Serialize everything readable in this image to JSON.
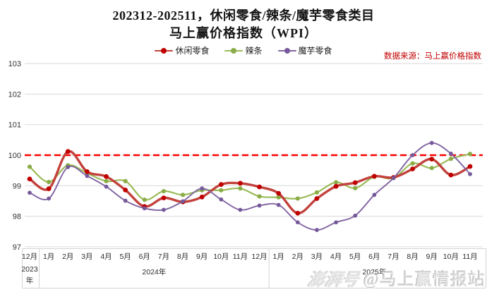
{
  "title": {
    "line1": "202312-202511，休闲零食/辣条/魔芋零食类目",
    "line2": "马上赢价格指数（WPI）"
  },
  "source_note": "数据来源：马上赢价格指数",
  "watermark": {
    "logo": "澎湃号",
    "handle": "@马上赢情报站"
  },
  "legend": [
    {
      "label": "休闲零食",
      "line_color": "#c2413c",
      "marker_color": "#c00000"
    },
    {
      "label": "辣条",
      "line_color": "#9bbb59",
      "marker_color": "#8aac47"
    },
    {
      "label": "魔芋零食",
      "line_color": "#8064a2",
      "marker_color": "#75599b"
    }
  ],
  "chart_data": {
    "type": "line",
    "title": "202312-202511，休闲零食/辣条/魔芋零食类目 马上赢价格指数（WPI）",
    "grid": true,
    "legend_position": "top",
    "ylim": [
      97,
      103
    ],
    "y_ticks": [
      103,
      102,
      101,
      100,
      99,
      98,
      97
    ],
    "reference_line": {
      "value": 100,
      "style": "dashed",
      "color": "#ff0000"
    },
    "categories": [
      "2023-12",
      "2024-01",
      "2024-02",
      "2024-03",
      "2024-04",
      "2024-05",
      "2024-06",
      "2024-07",
      "2024-08",
      "2024-09",
      "2024-10",
      "2024-11",
      "2024-12",
      "2025-01",
      "2025-02",
      "2025-03",
      "2025-04",
      "2025-05",
      "2025-06",
      "2025-07",
      "2025-08",
      "2025-09",
      "2025-10",
      "2025-11"
    ],
    "month_labels": [
      "12月",
      "1月",
      "2月",
      "3月",
      "4月",
      "5月",
      "6月",
      "7月",
      "8月",
      "9月",
      "10月",
      "11月",
      "12月",
      "1月",
      "2月",
      "3月",
      "4月",
      "5月",
      "6月",
      "7月",
      "8月",
      "9月",
      "10月",
      "11月"
    ],
    "year_groups": [
      {
        "label": "2023年",
        "start": 0,
        "end": 0
      },
      {
        "label": "2024年",
        "start": 1,
        "end": 12
      },
      {
        "label": "2025年",
        "start": 13,
        "end": 23
      }
    ],
    "series": [
      {
        "name": "休闲零食",
        "color": "#c2413c",
        "marker_color": "#c00000",
        "width": 3.4,
        "marker_r": 3.4,
        "values": [
          99.22,
          98.9,
          100.12,
          99.46,
          99.3,
          98.86,
          98.32,
          98.6,
          98.47,
          98.63,
          99.04,
          99.08,
          98.96,
          98.75,
          98.1,
          98.58,
          98.98,
          99.1,
          99.31,
          99.27,
          99.55,
          99.87,
          99.35,
          99.63
        ]
      },
      {
        "name": "辣条",
        "color": "#9bbb59",
        "marker_color": "#8aac47",
        "width": 2.2,
        "marker_r": 3.1,
        "values": [
          99.62,
          99.12,
          99.67,
          99.41,
          99.15,
          99.15,
          98.54,
          98.82,
          98.7,
          98.85,
          98.85,
          98.91,
          98.65,
          98.62,
          98.58,
          98.78,
          99.11,
          98.92,
          99.29,
          99.25,
          99.73,
          99.58,
          99.88,
          100.04
        ]
      },
      {
        "name": "魔芋零食",
        "color": "#8064a2",
        "marker_color": "#75599b",
        "width": 1.9,
        "marker_r": 2.9,
        "values": [
          98.77,
          98.58,
          99.61,
          99.32,
          98.97,
          98.51,
          98.26,
          98.21,
          98.49,
          98.91,
          98.55,
          98.21,
          98.35,
          98.37,
          97.8,
          97.55,
          97.8,
          98.02,
          98.7,
          99.25,
          100.0,
          100.4,
          100.05,
          99.38
        ]
      }
    ]
  }
}
